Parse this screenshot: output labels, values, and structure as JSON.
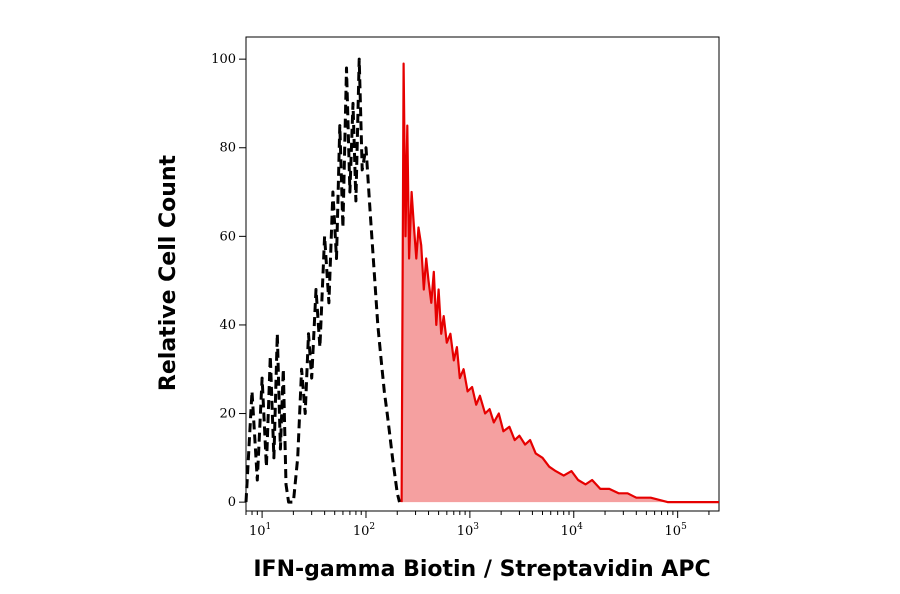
{
  "chart_data": {
    "type": "area",
    "title": "",
    "xlabel": "IFN-gamma Biotin / Streptavidin APC",
    "ylabel": "Relative Cell Count",
    "xscale": "log",
    "xlim": [
      7,
      250000
    ],
    "ylim": [
      -2,
      105
    ],
    "x_ticks": [
      {
        "base": "10",
        "exp": "1"
      },
      {
        "base": "10",
        "exp": "2"
      },
      {
        "base": "10",
        "exp": "3"
      },
      {
        "base": "10",
        "exp": "4"
      },
      {
        "base": "10",
        "exp": "5"
      }
    ],
    "y_ticks": [
      "0",
      "20",
      "40",
      "60",
      "80",
      "100"
    ],
    "grid": false,
    "legend": "none",
    "series": [
      {
        "style": "dashed-line",
        "color": "#000000",
        "x": [
          7,
          8,
          9,
          10,
          11,
          12,
          13,
          14,
          15,
          16,
          17,
          18,
          20,
          22,
          24,
          26,
          28,
          30,
          33,
          36,
          40,
          44,
          48,
          52,
          56,
          60,
          65,
          70,
          75,
          80,
          86,
          92,
          100,
          110,
          120,
          130,
          140,
          150,
          160,
          170,
          180,
          190,
          200,
          210
        ],
        "values": [
          0,
          25,
          5,
          28,
          8,
          33,
          10,
          38,
          12,
          30,
          4,
          0,
          0,
          10,
          30,
          20,
          38,
          28,
          48,
          35,
          60,
          45,
          70,
          55,
          85,
          62,
          98,
          70,
          90,
          68,
          100,
          75,
          80,
          65,
          52,
          40,
          32,
          25,
          20,
          15,
          10,
          6,
          2,
          0
        ]
      },
      {
        "style": "filled-area",
        "color": "#e60000",
        "fill": "#f5a0a0",
        "x": [
          220,
          230,
          240,
          250,
          260,
          275,
          290,
          305,
          320,
          340,
          360,
          380,
          400,
          425,
          450,
          475,
          500,
          530,
          560,
          600,
          650,
          700,
          750,
          800,
          870,
          950,
          1050,
          1150,
          1250,
          1400,
          1550,
          1700,
          1900,
          2100,
          2400,
          2700,
          3000,
          3400,
          3800,
          4300,
          5000,
          5800,
          6700,
          8000,
          9500,
          11000,
          13000,
          15000,
          18000,
          22000,
          27000,
          33000,
          40000,
          55000,
          80000,
          120000,
          180000,
          250000
        ],
        "values": [
          0,
          99,
          60,
          85,
          55,
          70,
          62,
          55,
          62,
          58,
          48,
          55,
          50,
          45,
          52,
          40,
          48,
          38,
          42,
          36,
          38,
          32,
          35,
          28,
          30,
          25,
          26,
          22,
          24,
          20,
          21,
          18,
          20,
          16,
          17,
          14,
          15,
          13,
          14,
          11,
          10,
          8,
          7,
          6,
          7,
          5,
          4,
          5,
          3,
          3,
          2,
          2,
          1,
          1,
          0,
          0,
          0,
          0
        ]
      }
    ]
  }
}
